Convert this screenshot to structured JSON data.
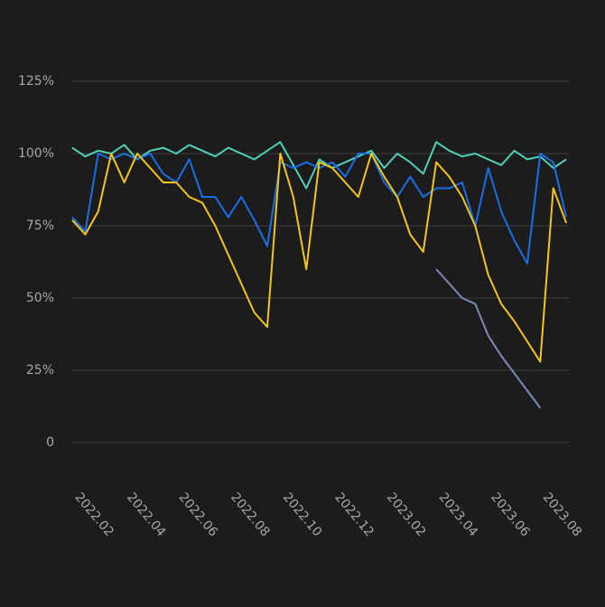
{
  "chart_data": {
    "type": "line",
    "x": [
      0.6,
      1.1,
      1.6,
      2.1,
      2.6,
      3.1,
      3.6,
      4.1,
      4.6,
      5.1,
      5.6,
      6.1,
      6.6,
      7.1,
      7.6,
      8.1,
      8.6,
      9.1,
      9.6,
      10.1,
      10.6,
      11.1,
      11.6,
      12.1,
      12.6,
      13.1,
      13.6,
      14.1,
      14.6,
      15.1,
      15.6,
      16.1,
      16.6,
      17.1,
      17.6,
      18.1,
      18.6,
      19.1,
      19.6
    ],
    "series": [
      {
        "color": "#4fd1b8",
        "values": [
          102,
          99,
          101,
          100,
          103,
          98,
          101,
          102,
          100,
          103,
          101,
          99,
          102,
          100,
          98,
          101,
          104,
          96,
          88,
          98,
          95,
          97,
          99,
          101,
          95,
          100,
          97,
          93,
          104,
          101,
          99,
          100,
          98,
          96,
          101,
          98,
          99,
          95,
          98
        ]
      },
      {
        "color": "#1a6ee8",
        "values": [
          78,
          73,
          100,
          98,
          100,
          98,
          100,
          93,
          90,
          98,
          85,
          85,
          78,
          85,
          77,
          68,
          97,
          95,
          97,
          95,
          97,
          92,
          100,
          100,
          90,
          85,
          92,
          85,
          88,
          88,
          90,
          75,
          95,
          80,
          70,
          62,
          100,
          97,
          78
        ]
      },
      {
        "color": "#7b8ab8",
        "values": [
          null,
          null,
          null,
          null,
          null,
          null,
          null,
          null,
          null,
          null,
          null,
          null,
          null,
          null,
          null,
          null,
          null,
          null,
          null,
          null,
          null,
          null,
          null,
          null,
          null,
          null,
          null,
          null,
          60,
          55,
          50,
          48,
          37,
          30,
          24,
          18,
          12,
          null,
          null
        ]
      },
      {
        "color": "#f5c518",
        "values": [
          77,
          72,
          80,
          100,
          90,
          100,
          95,
          90,
          90,
          85,
          83,
          75,
          65,
          55,
          45,
          40,
          100,
          85,
          60,
          97,
          95,
          90,
          85,
          100,
          92,
          85,
          72,
          66,
          97,
          92,
          85,
          75,
          58,
          48,
          42,
          35,
          28,
          88,
          76
        ]
      }
    ],
    "xlim": [
      0.6,
      19.7
    ],
    "xticks": [
      {
        "value": 1,
        "label": "2022.02"
      },
      {
        "value": 3,
        "label": "2022.04"
      },
      {
        "value": 5,
        "label": "2022.06"
      },
      {
        "value": 7,
        "label": "2022.08"
      },
      {
        "value": 9,
        "label": "2022.10"
      },
      {
        "value": 11,
        "label": "2022.12"
      },
      {
        "value": 13,
        "label": "2023.02"
      },
      {
        "value": 15,
        "label": "2023.04"
      },
      {
        "value": 17,
        "label": "2023.06"
      },
      {
        "value": 19,
        "label": "2023.08"
      }
    ],
    "ylim": [
      0,
      125
    ],
    "yticks": [
      0,
      {
        "value": 25,
        "label": "25%"
      },
      {
        "value": 50,
        "label": "50%"
      },
      {
        "value": 75,
        "label": "75%"
      },
      {
        "value": 100,
        "label": "100%"
      },
      {
        "value": 125,
        "label": "125%"
      }
    ],
    "grid": true
  }
}
